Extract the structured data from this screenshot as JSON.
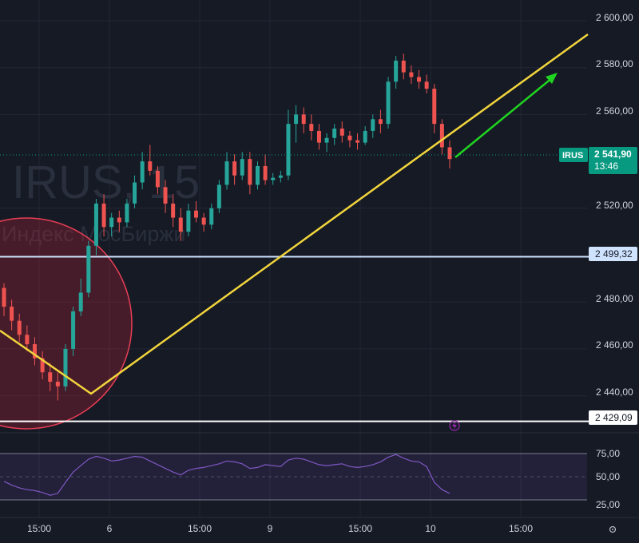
{
  "watermark": {
    "symbol": "IRUS, 15",
    "exchange": "Индекс МосБиржи"
  },
  "colors": {
    "background": "#161a25",
    "grid": "#232734",
    "up": "#26a69a",
    "down": "#ef5350",
    "trendline": "#f2d53c",
    "projection_arrow": "#1fd51f",
    "price_label": "#089981",
    "level_upper": "#cfe3ff",
    "level_lower": "#ffffff",
    "circle_stroke": "#e83e55",
    "circle_fill": "rgba(176,34,54,0.32)",
    "rsi_line": "#7e57c2",
    "rsi_band": "rgba(126,87,194,0.13)",
    "axis_text": "#d1d4dc"
  },
  "price_axis": {
    "ticks": [
      "2 600,00",
      "2 580,00",
      "2 560,00",
      "2 520,00",
      "2 480,00",
      "2 460,00",
      "2 440,00"
    ]
  },
  "rsi_axis": {
    "ticks": [
      "75,00",
      "50,00",
      "25,00"
    ]
  },
  "time_axis": {
    "labels": [
      "15:00",
      "6",
      "15:00",
      "9",
      "15:00",
      "10",
      "15:00"
    ]
  },
  "current_price": {
    "symbol": "IRUS",
    "price": "2 541,90",
    "countdown": "13:46"
  },
  "levels": [
    {
      "price": 2499.32,
      "label": "2 499,32",
      "color": "#cfe3ff"
    },
    {
      "price": 2429.09,
      "label": "2 429,09",
      "color": "#ffffff"
    }
  ],
  "alert_icon": "lightning-icon",
  "settings_icon": "gear-icon",
  "chart_data": {
    "type": "candlestick",
    "symbol": "IRUS",
    "timeframe": "15",
    "ylim": [
      2422,
      2606
    ],
    "ohlc": [
      [
        2486,
        2488,
        2474,
        2478
      ],
      [
        2478,
        2481,
        2468,
        2472
      ],
      [
        2472,
        2475,
        2463,
        2466
      ],
      [
        2466,
        2470,
        2459,
        2462
      ],
      [
        2462,
        2465,
        2453,
        2456
      ],
      [
        2456,
        2459,
        2447,
        2450
      ],
      [
        2450,
        2454,
        2442,
        2446
      ],
      [
        2446,
        2450,
        2438,
        2444
      ],
      [
        2444,
        2462,
        2442,
        2460
      ],
      [
        2460,
        2478,
        2457,
        2476
      ],
      [
        2476,
        2490,
        2474,
        2484
      ],
      [
        2484,
        2506,
        2482,
        2504
      ],
      [
        2504,
        2524,
        2500,
        2522
      ],
      [
        2522,
        2526,
        2508,
        2512
      ],
      [
        2512,
        2518,
        2508,
        2516
      ],
      [
        2516,
        2519,
        2510,
        2514
      ],
      [
        2514,
        2524,
        2512,
        2522
      ],
      [
        2522,
        2534,
        2520,
        2531
      ],
      [
        2531,
        2544,
        2528,
        2540
      ],
      [
        2540,
        2547,
        2534,
        2536
      ],
      [
        2536,
        2538,
        2526,
        2529
      ],
      [
        2529,
        2532,
        2518,
        2522
      ],
      [
        2522,
        2526,
        2512,
        2516
      ],
      [
        2516,
        2520,
        2506,
        2510
      ],
      [
        2510,
        2522,
        2508,
        2519
      ],
      [
        2519,
        2523,
        2514,
        2516
      ],
      [
        2516,
        2518,
        2510,
        2513
      ],
      [
        2513,
        2522,
        2511,
        2520
      ],
      [
        2520,
        2532,
        2518,
        2530
      ],
      [
        2530,
        2544,
        2528,
        2540
      ],
      [
        2540,
        2543,
        2530,
        2534
      ],
      [
        2534,
        2544,
        2532,
        2541
      ],
      [
        2541,
        2544,
        2526,
        2530
      ],
      [
        2530,
        2540,
        2528,
        2538
      ],
      [
        2538,
        2543,
        2530,
        2532
      ],
      [
        2532,
        2535,
        2530,
        2533
      ],
      [
        2533,
        2536,
        2531,
        2534
      ],
      [
        2534,
        2562,
        2532,
        2556
      ],
      [
        2556,
        2564,
        2548,
        2560
      ],
      [
        2560,
        2563,
        2552,
        2556
      ],
      [
        2556,
        2560,
        2549,
        2553
      ],
      [
        2553,
        2556,
        2545,
        2548
      ],
      [
        2548,
        2552,
        2544,
        2550
      ],
      [
        2550,
        2556,
        2547,
        2554
      ],
      [
        2554,
        2557,
        2548,
        2551
      ],
      [
        2551,
        2553,
        2546,
        2549
      ],
      [
        2549,
        2552,
        2545,
        2548
      ],
      [
        2548,
        2555,
        2547,
        2553
      ],
      [
        2553,
        2560,
        2550,
        2558
      ],
      [
        2558,
        2562,
        2552,
        2556
      ],
      [
        2556,
        2576,
        2554,
        2574
      ],
      [
        2574,
        2585,
        2571,
        2583
      ],
      [
        2583,
        2586,
        2575,
        2578
      ],
      [
        2578,
        2581,
        2573,
        2576
      ],
      [
        2576,
        2579,
        2571,
        2574
      ],
      [
        2574,
        2577,
        2569,
        2571
      ],
      [
        2571,
        2573,
        2552,
        2556
      ],
      [
        2556,
        2558,
        2543,
        2546
      ],
      [
        2546,
        2549,
        2537,
        2541
      ]
    ],
    "rsi": [
      45,
      41,
      38,
      36,
      35,
      33,
      30,
      32,
      44,
      55,
      62,
      69,
      72,
      70,
      67,
      68,
      70,
      72,
      71,
      67,
      63,
      59,
      55,
      52,
      57,
      59,
      60,
      62,
      64,
      67,
      66,
      64,
      59,
      60,
      63,
      62,
      61,
      68,
      70,
      69,
      66,
      63,
      62,
      63,
      64,
      61,
      60,
      61,
      63,
      66,
      71,
      74,
      70,
      67,
      66,
      61,
      44,
      36,
      32
    ],
    "levels": [
      2499.32,
      2429.09
    ],
    "current_price": 2541.9,
    "price_ticks": [
      2600,
      2580,
      2560,
      2520,
      2480,
      2460,
      2440
    ],
    "rsi_ticks": [
      75,
      50,
      25
    ],
    "time_labels": [
      "15:00",
      "6",
      "15:00",
      "9",
      "15:00",
      "10",
      "15:00"
    ]
  }
}
